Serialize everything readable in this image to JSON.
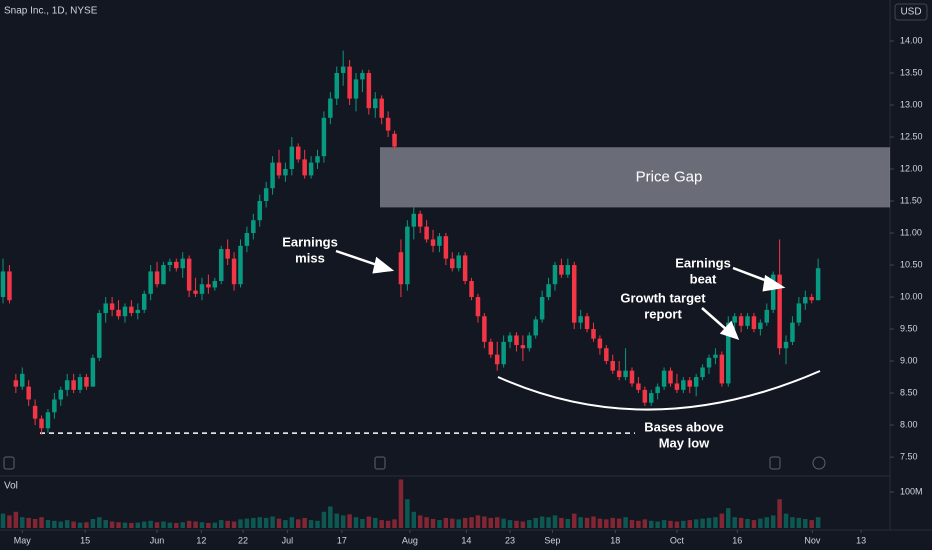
{
  "chart_data": {
    "type": "candlestick",
    "title": "Snap Inc., 1D, NYSE",
    "currency": "USD",
    "volume_label": "Vol",
    "up_color": "#089981",
    "down_color": "#f23645",
    "open": [
      10.0,
      10.4,
      8.7,
      8.6,
      8.6,
      8.3,
      8.1,
      7.95,
      8.2,
      8.4,
      8.55,
      8.7,
      8.55,
      8.75,
      8.6,
      9.05,
      9.75,
      9.9,
      9.8,
      9.7,
      9.85,
      9.75,
      9.8,
      10.05,
      10.4,
      10.2,
      10.5,
      10.55,
      10.45,
      10.6,
      10.1,
      10.05,
      10.2,
      10.15,
      10.25,
      10.75,
      10.6,
      10.2,
      10.8,
      11.0,
      11.2,
      11.5,
      11.7,
      12.1,
      11.9,
      12.0,
      12.35,
      12.15,
      11.9,
      12.1,
      12.2,
      12.8,
      13.1,
      13.5,
      13.6,
      13.1,
      13.4,
      13.5,
      12.95,
      13.1,
      12.8,
      12.55,
      10.7,
      10.2,
      11.1,
      11.3,
      11.1,
      10.9,
      10.8,
      10.95,
      10.6,
      10.45,
      10.65,
      10.25,
      10.0,
      9.7,
      9.3,
      9.1,
      8.95,
      9.3,
      9.4,
      9.25,
      9.2,
      9.4,
      9.65,
      10.0,
      10.2,
      10.5,
      10.35,
      10.5,
      9.6,
      9.7,
      9.5,
      9.35,
      9.2,
      9.0,
      8.85,
      8.75,
      8.85,
      8.65,
      8.55,
      8.35,
      8.5,
      8.6,
      8.85,
      8.65,
      8.55,
      8.7,
      8.6,
      8.75,
      8.9,
      9.05,
      9.1,
      8.65,
      9.6,
      9.7,
      9.55,
      9.7,
      9.5,
      9.6,
      9.8,
      10.35,
      9.2,
      9.3,
      9.6,
      9.9,
      10.0,
      9.95
    ],
    "high": [
      10.6,
      10.5,
      8.8,
      8.9,
      8.7,
      8.4,
      8.15,
      8.25,
      8.5,
      8.6,
      8.8,
      8.8,
      8.8,
      8.8,
      9.1,
      9.8,
      10.0,
      10.0,
      9.95,
      9.9,
      9.95,
      9.9,
      10.1,
      10.5,
      10.55,
      10.55,
      10.6,
      10.6,
      10.7,
      10.65,
      10.3,
      10.3,
      10.35,
      10.3,
      10.8,
      10.9,
      10.7,
      10.9,
      11.1,
      11.3,
      11.6,
      11.8,
      12.2,
      12.3,
      12.1,
      12.5,
      12.4,
      12.3,
      12.2,
      12.3,
      12.9,
      13.2,
      13.6,
      13.85,
      13.7,
      13.5,
      13.55,
      13.55,
      13.2,
      13.15,
      12.9,
      12.6,
      10.9,
      11.2,
      11.4,
      11.35,
      11.2,
      11.05,
      11.0,
      11.0,
      10.7,
      10.7,
      10.7,
      10.3,
      10.05,
      9.75,
      9.35,
      9.3,
      9.4,
      9.45,
      9.45,
      9.4,
      9.45,
      9.7,
      10.1,
      10.3,
      10.55,
      10.6,
      10.6,
      10.55,
      9.8,
      9.75,
      9.6,
      9.4,
      9.25,
      9.1,
      9.0,
      9.2,
      8.9,
      8.75,
      8.6,
      8.55,
      8.65,
      8.9,
      8.9,
      8.8,
      8.75,
      8.75,
      8.8,
      8.95,
      9.1,
      9.2,
      9.15,
      9.7,
      9.75,
      9.75,
      9.75,
      9.75,
      9.65,
      9.9,
      10.4,
      10.9,
      9.4,
      9.7,
      10.0,
      10.1,
      10.05,
      10.6
    ],
    "low": [
      9.9,
      9.9,
      8.5,
      8.55,
      8.3,
      8.0,
      7.85,
      7.88,
      8.1,
      8.3,
      8.45,
      8.5,
      8.5,
      8.55,
      8.6,
      9.0,
      9.6,
      9.7,
      9.65,
      9.6,
      9.7,
      9.65,
      9.75,
      9.95,
      10.15,
      10.2,
      10.4,
      10.4,
      10.3,
      10.0,
      10.0,
      9.95,
      10.05,
      10.1,
      10.2,
      10.5,
      10.1,
      10.15,
      10.7,
      10.9,
      11.1,
      11.4,
      11.6,
      11.85,
      11.8,
      11.9,
      12.1,
      11.85,
      11.85,
      12.0,
      12.1,
      12.7,
      13.0,
      13.3,
      13.0,
      12.9,
      13.2,
      12.85,
      12.8,
      12.7,
      12.5,
      12.3,
      10.0,
      10.1,
      10.9,
      11.0,
      10.85,
      10.7,
      10.7,
      10.5,
      10.4,
      10.4,
      10.2,
      9.95,
      9.6,
      9.2,
      9.05,
      8.85,
      8.9,
      9.2,
      9.15,
      9.0,
      9.15,
      9.35,
      9.6,
      9.95,
      10.1,
      10.3,
      10.3,
      9.5,
      9.5,
      9.45,
      9.3,
      9.1,
      8.95,
      8.8,
      8.7,
      8.7,
      8.6,
      8.5,
      8.3,
      8.3,
      8.4,
      8.55,
      8.6,
      8.5,
      8.5,
      8.5,
      8.45,
      8.7,
      8.8,
      8.95,
      8.6,
      8.6,
      9.5,
      9.45,
      9.5,
      9.45,
      9.4,
      9.55,
      9.75,
      9.1,
      8.95,
      9.25,
      9.55,
      9.8,
      9.9,
      9.95
    ],
    "close": [
      10.4,
      9.95,
      8.6,
      8.8,
      8.4,
      8.1,
      7.95,
      8.2,
      8.4,
      8.55,
      8.7,
      8.55,
      8.75,
      8.6,
      9.05,
      9.75,
      9.9,
      9.8,
      9.7,
      9.85,
      9.75,
      9.8,
      10.05,
      10.4,
      10.2,
      10.5,
      10.55,
      10.45,
      10.6,
      10.1,
      10.05,
      10.2,
      10.15,
      10.25,
      10.75,
      10.6,
      10.2,
      10.8,
      11.0,
      11.2,
      11.5,
      11.7,
      12.1,
      11.9,
      12.0,
      12.35,
      12.15,
      11.9,
      12.1,
      12.2,
      12.8,
      13.1,
      13.5,
      13.6,
      13.1,
      13.4,
      13.5,
      12.95,
      13.1,
      12.8,
      12.6,
      12.35,
      10.2,
      11.1,
      11.3,
      11.1,
      10.9,
      10.8,
      10.95,
      10.6,
      10.45,
      10.65,
      10.25,
      10.0,
      9.7,
      9.3,
      9.1,
      8.95,
      9.3,
      9.4,
      9.25,
      9.2,
      9.4,
      9.65,
      10.0,
      10.2,
      10.5,
      10.35,
      10.5,
      9.6,
      9.7,
      9.5,
      9.35,
      9.2,
      9.0,
      8.85,
      8.75,
      8.85,
      8.65,
      8.55,
      8.35,
      8.5,
      8.6,
      8.85,
      8.65,
      8.55,
      8.7,
      8.6,
      8.75,
      8.9,
      9.05,
      9.1,
      8.65,
      9.6,
      9.7,
      9.55,
      9.7,
      9.5,
      9.6,
      9.8,
      10.35,
      9.2,
      9.3,
      9.6,
      9.9,
      10.0,
      9.95,
      10.45
    ],
    "volume": [
      40,
      35,
      45,
      30,
      28,
      25,
      30,
      22,
      20,
      18,
      22,
      18,
      15,
      16,
      25,
      30,
      22,
      18,
      16,
      15,
      14,
      15,
      18,
      20,
      16,
      18,
      15,
      14,
      16,
      20,
      18,
      16,
      14,
      15,
      22,
      20,
      18,
      24,
      26,
      28,
      30,
      28,
      32,
      26,
      22,
      30,
      24,
      28,
      22,
      20,
      45,
      60,
      40,
      35,
      38,
      30,
      25,
      32,
      28,
      22,
      20,
      24,
      135,
      80,
      45,
      35,
      30,
      25,
      22,
      28,
      26,
      24,
      28,
      30,
      35,
      32,
      28,
      30,
      26,
      22,
      20,
      18,
      22,
      28,
      32,
      30,
      35,
      28,
      25,
      40,
      30,
      28,
      32,
      26,
      24,
      28,
      26,
      30,
      22,
      20,
      24,
      20,
      18,
      22,
      20,
      18,
      20,
      22,
      24,
      26,
      28,
      30,
      40,
      55,
      30,
      28,
      25,
      22,
      26,
      30,
      35,
      80,
      40,
      30,
      28,
      25,
      22,
      30
    ],
    "xlim": [
      -0.47,
      138.2
    ],
    "xticks": [
      {
        "value": 3.0,
        "label": "May"
      },
      {
        "value": 12.8,
        "label": "15"
      },
      {
        "value": 24,
        "label": "Jun"
      },
      {
        "value": 30.9,
        "label": "12"
      },
      {
        "value": 37.4,
        "label": "22"
      },
      {
        "value": 44.3,
        "label": "Jul"
      },
      {
        "value": 52.8,
        "label": "17"
      },
      {
        "value": 63.4,
        "label": "Aug"
      },
      {
        "value": 72.2,
        "label": "14"
      },
      {
        "value": 79,
        "label": "23"
      },
      {
        "value": 85.6,
        "label": "Sep"
      },
      {
        "value": 95.4,
        "label": "18"
      },
      {
        "value": 105,
        "label": "Oct"
      },
      {
        "value": 114.4,
        "label": "16"
      },
      {
        "value": 126.1,
        "label": "Nov"
      },
      {
        "value": 133.7,
        "label": "13"
      }
    ],
    "ylim": [
      7.22,
      14.64
    ],
    "yticks": [
      {
        "value": 7.5,
        "label": "7.50"
      },
      {
        "value": 8,
        "label": "8.00"
      },
      {
        "value": 8.5,
        "label": "8.50"
      },
      {
        "value": 9,
        "label": "9.00"
      },
      {
        "value": 9.5,
        "label": "9.50"
      },
      {
        "value": 10,
        "label": "10.00"
      },
      {
        "value": 10.5,
        "label": "10.50"
      },
      {
        "value": 11,
        "label": "11.00"
      },
      {
        "value": 11.5,
        "label": "11.50"
      },
      {
        "value": 12,
        "label": "12.00"
      },
      {
        "value": 12.5,
        "label": "12.50"
      },
      {
        "value": 13,
        "label": "13.00"
      },
      {
        "value": 13.5,
        "label": "13.50"
      },
      {
        "value": 14,
        "label": "14.00"
      }
    ],
    "vlim": [
      0,
      139
    ],
    "vticks": [
      {
        "value": 100,
        "label": "100M"
      }
    ],
    "price_gap": {
      "label": "Price Gap",
      "from": 11.4,
      "to": 12.34
    },
    "may_low": 7.875,
    "annotations": [
      [
        "Earnings",
        "miss"
      ],
      [
        "Growth target",
        "report"
      ],
      [
        "Earnings",
        "beat"
      ],
      [
        "Bases above",
        "May low"
      ]
    ]
  }
}
